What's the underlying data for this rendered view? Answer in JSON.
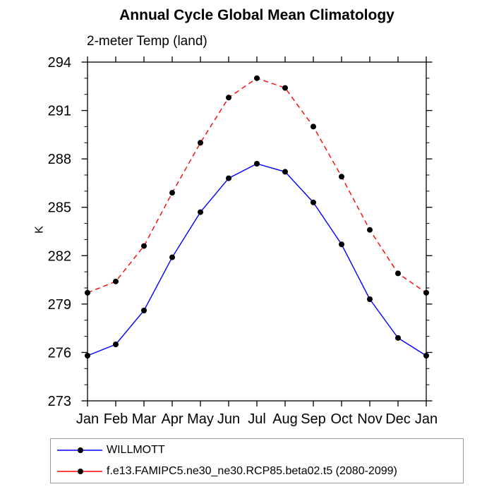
{
  "chart_data": {
    "type": "line",
    "title": "Annual Cycle Global Mean Climatology",
    "subtitle": "2-meter Temp (land)",
    "ylabel": "K",
    "xlabel": "",
    "categories": [
      "Jan",
      "Feb",
      "Mar",
      "Apr",
      "May",
      "Jun",
      "Jul",
      "Aug",
      "Sep",
      "Oct",
      "Nov",
      "Dec",
      "Jan"
    ],
    "ylim": [
      273,
      294
    ],
    "ytick_major_interval": 3,
    "ytick_minor_interval": 1,
    "ytick_labels": [
      "273",
      "276",
      "279",
      "282",
      "285",
      "288",
      "291",
      "294"
    ],
    "grid": false,
    "axis_color": "#000000",
    "legend_position": "bottom-left-box",
    "series": [
      {
        "name": "WILLMOTT",
        "color": "#0000ff",
        "line_style": "solid",
        "marker": "filled-circle",
        "marker_color": "#000000",
        "values": [
          275.8,
          276.5,
          278.6,
          281.9,
          284.7,
          286.8,
          287.7,
          287.2,
          285.3,
          282.7,
          279.3,
          276.9,
          275.8
        ]
      },
      {
        "name": "f.e13.FAMIPC5.ne30_ne30.RCP85.beta02.t5 (2080-2099)",
        "color": "#ff0000",
        "line_style": "dashed",
        "marker": "filled-circle",
        "marker_color": "#000000",
        "values": [
          279.7,
          280.4,
          282.6,
          285.9,
          289.0,
          291.8,
          293.0,
          292.4,
          290.0,
          286.9,
          283.6,
          280.9,
          279.7
        ]
      }
    ]
  }
}
